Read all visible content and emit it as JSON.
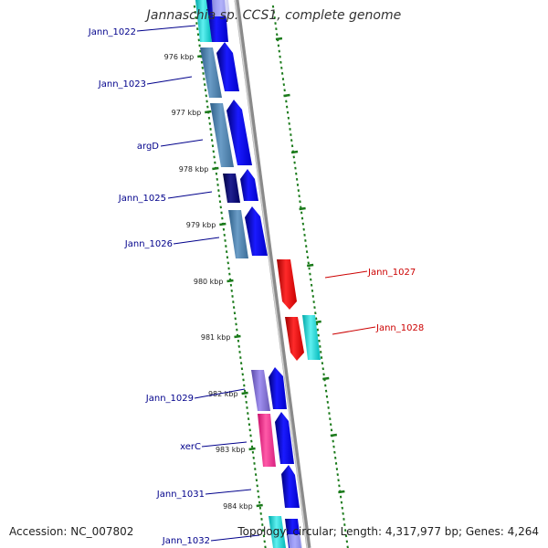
{
  "title": "Jannaschia sp. CCS1, complete genome",
  "footer": {
    "accession": "Accession: NC_007802",
    "summary": "Topology: circular; Length: 4,317,977 bp; Genes: 4,264"
  },
  "colors": {
    "backbone": "#999999",
    "tick": "#1a7a1a",
    "label_blue": "#00008b",
    "label_red": "#cc0000"
  },
  "tick_labels": [
    "976 kbp",
    "977 kbp",
    "978 kbp",
    "979 kbp",
    "980 kbp",
    "981 kbp",
    "982 kbp",
    "983 kbp",
    "984 kbp"
  ],
  "genes": [
    {
      "name": "Jann_1022",
      "strand": "+",
      "label_color": "blue"
    },
    {
      "name": "Jann_1023",
      "strand": "+",
      "label_color": "blue"
    },
    {
      "name": "argD",
      "strand": "+",
      "label_color": "blue"
    },
    {
      "name": "Jann_1025",
      "strand": "+",
      "label_color": "blue"
    },
    {
      "name": "Jann_1026",
      "strand": "+",
      "label_color": "blue"
    },
    {
      "name": "Jann_1027",
      "strand": "-",
      "label_color": "red"
    },
    {
      "name": "Jann_1028",
      "strand": "-",
      "label_color": "red"
    },
    {
      "name": "Jann_1029",
      "strand": "+",
      "label_color": "blue"
    },
    {
      "name": "xerC",
      "strand": "+",
      "label_color": "blue"
    },
    {
      "name": "Jann_1031",
      "strand": "+",
      "label_color": "blue"
    },
    {
      "name": "Jann_1032",
      "strand": "+",
      "label_color": "blue"
    }
  ]
}
